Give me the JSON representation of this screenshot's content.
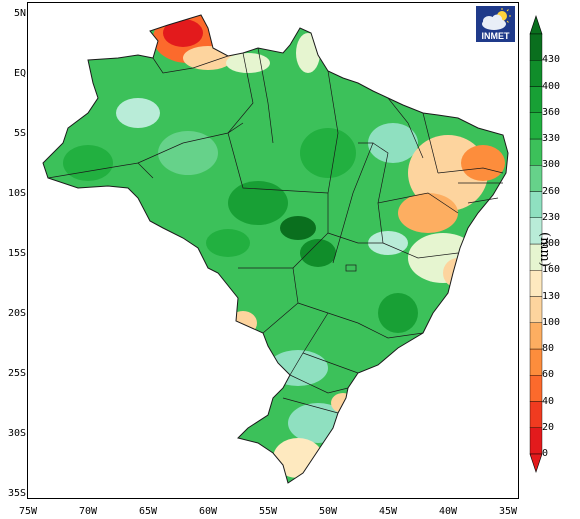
{
  "map": {
    "lat_labels": [
      "5N",
      "EQ",
      "5S",
      "10S",
      "15S",
      "20S",
      "25S",
      "30S",
      "35S"
    ],
    "lon_labels": [
      "75W",
      "70W",
      "65W",
      "60W",
      "55W",
      "50W",
      "45W",
      "40W",
      "35W"
    ]
  },
  "logo": {
    "text": "INMET",
    "icon": "cloud-sun-icon"
  },
  "colorbar": {
    "unit": "(mm)",
    "levels": [
      "0",
      "20",
      "40",
      "60",
      "80",
      "100",
      "130",
      "160",
      "200",
      "230",
      "260",
      "300",
      "330",
      "360",
      "400",
      "430"
    ],
    "colors": [
      "#e31a1c",
      "#f03b20",
      "#fc6a2c",
      "#fd8d3c",
      "#fdae61",
      "#fdd49e",
      "#fee9bf",
      "#e6f5d0",
      "#b9ecd8",
      "#8fe0c0",
      "#66d28a",
      "#3cc15a",
      "#22b040",
      "#18a035",
      "#108d2a",
      "#0a6f1e"
    ]
  },
  "colors": {
    "land_base": "#3cc15a",
    "outline": "#1a1a1a"
  }
}
